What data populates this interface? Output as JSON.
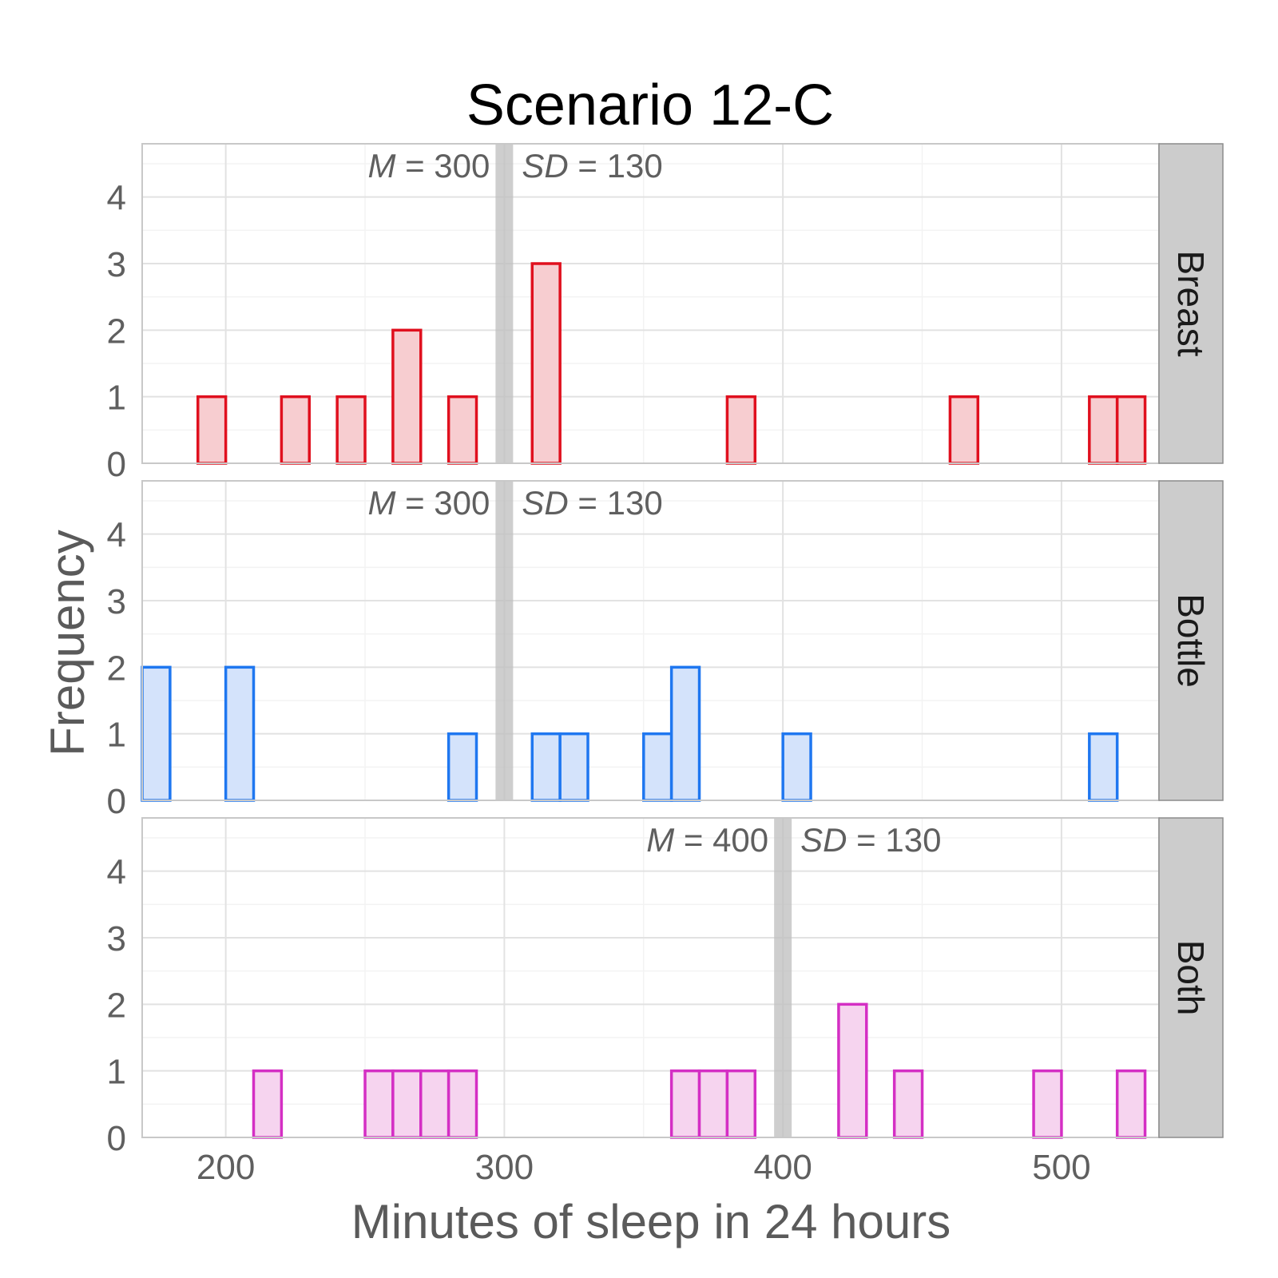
{
  "chart_data": {
    "type": "bar",
    "title": "Scenario 12-C",
    "xlabel": "Minutes of sleep in 24 hours",
    "ylabel": "Frequency",
    "xlim": [
      170,
      535
    ],
    "ylim": [
      0,
      4.8
    ],
    "x_ticks": [
      200,
      300,
      400,
      500
    ],
    "y_ticks": [
      0,
      1,
      2,
      3,
      4
    ],
    "bin_width": 10,
    "grid": true,
    "legend": "none",
    "panels": [
      {
        "strip": "Breast",
        "color": "#e0101e",
        "fill": "#f7cdd0",
        "mean": 300,
        "stat_m": "M = 300",
        "stat_sd": "SD = 130",
        "m_symbol": "M",
        "m_value": "= 300",
        "sd_symbol": "SD",
        "sd_value": "= 130",
        "bins": [
          [
            195,
            1
          ],
          [
            225,
            1
          ],
          [
            245,
            1
          ],
          [
            265,
            2
          ],
          [
            285,
            1
          ],
          [
            315,
            3
          ],
          [
            385,
            1
          ],
          [
            465,
            1
          ],
          [
            515,
            1
          ],
          [
            525,
            1
          ]
        ]
      },
      {
        "strip": "Bottle",
        "color": "#1f77f0",
        "fill": "#d4e3fb",
        "mean": 300,
        "stat_m": "M = 300",
        "stat_sd": "SD = 130",
        "m_symbol": "M",
        "m_value": "= 300",
        "sd_symbol": "SD",
        "sd_value": "= 130",
        "bins": [
          [
            175,
            2
          ],
          [
            205,
            2
          ],
          [
            285,
            1
          ],
          [
            315,
            1
          ],
          [
            325,
            1
          ],
          [
            355,
            1
          ],
          [
            365,
            2
          ],
          [
            405,
            1
          ],
          [
            515,
            1
          ]
        ]
      },
      {
        "strip": "Both",
        "color": "#d42fc4",
        "fill": "#f6d4ef",
        "mean": 400,
        "stat_m": "M = 400",
        "stat_sd": "SD = 130",
        "m_symbol": "M",
        "m_value": "= 400",
        "sd_symbol": "SD",
        "sd_value": "= 130",
        "bins": [
          [
            215,
            1
          ],
          [
            255,
            1
          ],
          [
            265,
            1
          ],
          [
            275,
            1
          ],
          [
            285,
            1
          ],
          [
            365,
            1
          ],
          [
            375,
            1
          ],
          [
            385,
            1
          ],
          [
            425,
            2
          ],
          [
            445,
            1
          ],
          [
            495,
            1
          ],
          [
            525,
            1
          ]
        ]
      }
    ]
  }
}
